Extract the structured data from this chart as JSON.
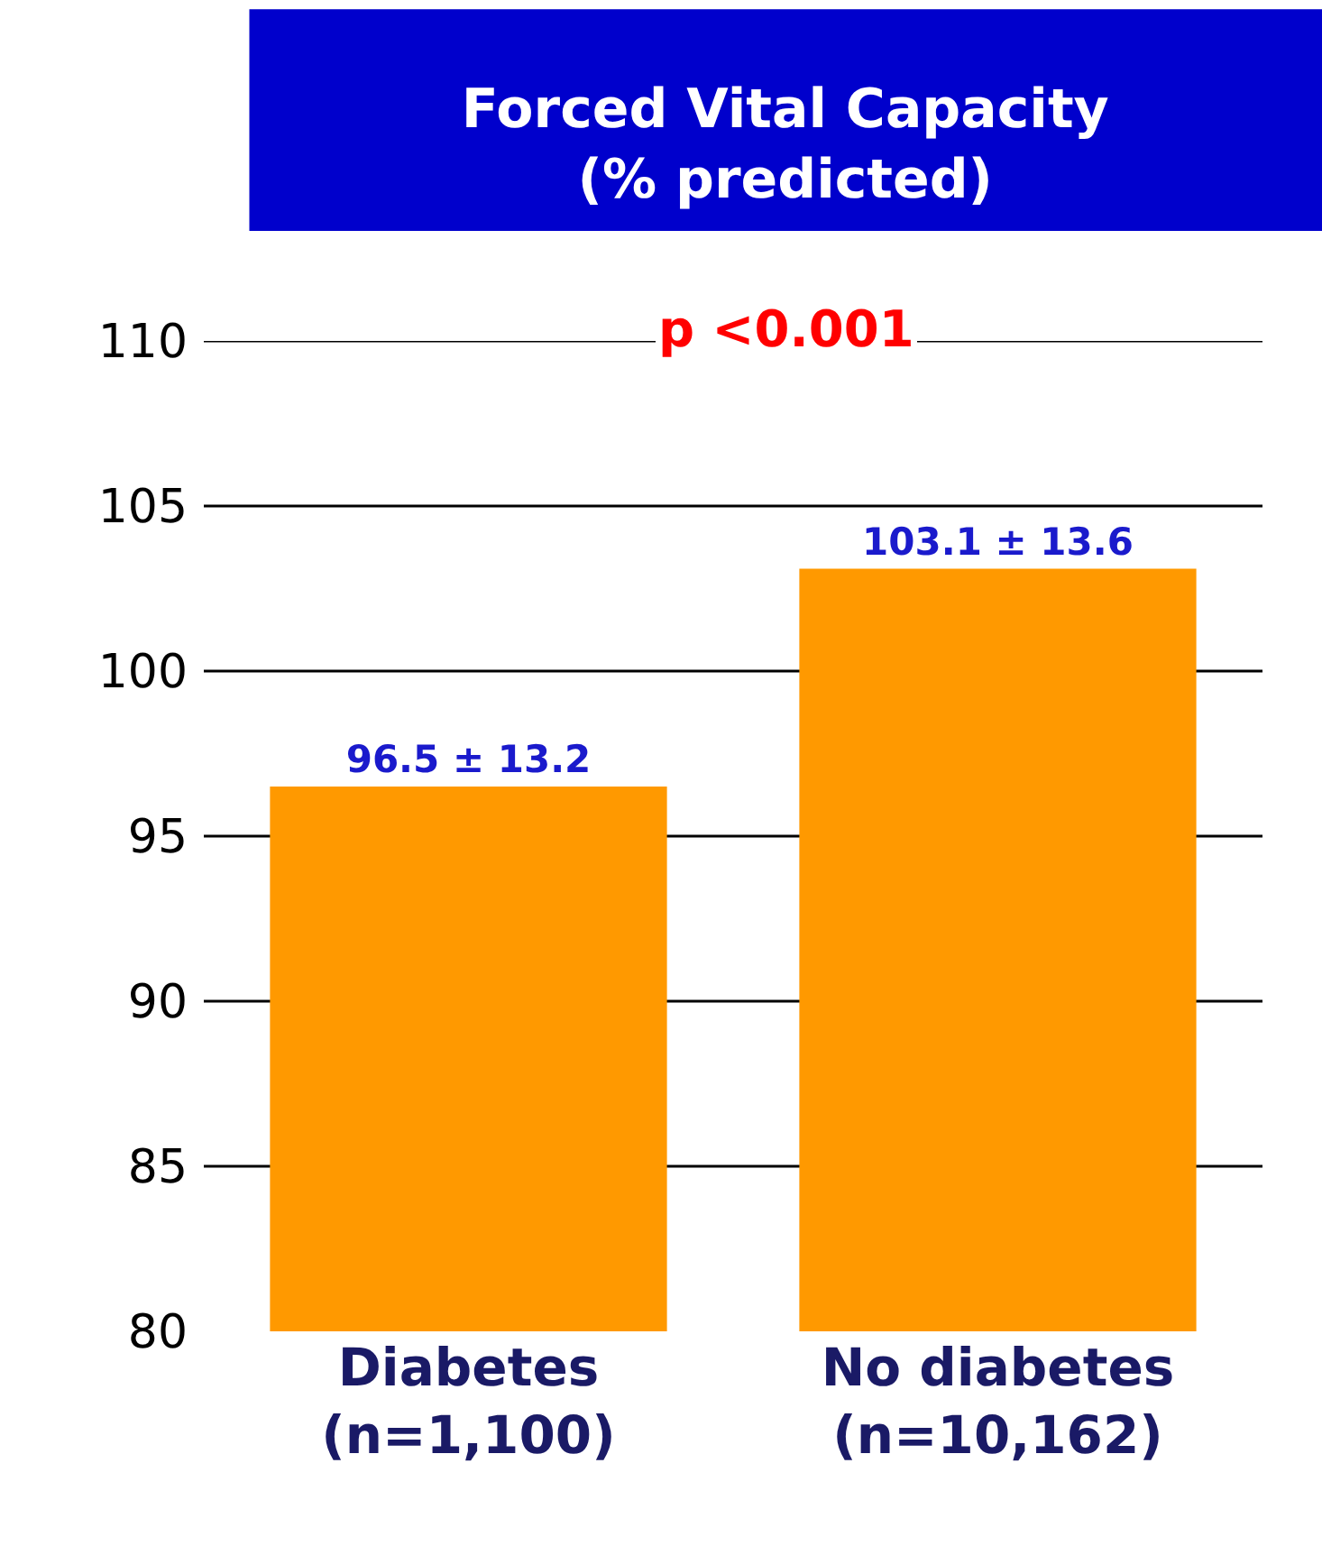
{
  "chart_data": {
    "type": "bar",
    "title": "Forced Vital Capacity\n(% predicted)",
    "categories": [
      "Diabetes\n(n=1,100)",
      "No diabetes\n(n=10,162)"
    ],
    "values": [
      96.5,
      103.1
    ],
    "value_labels": [
      "96.5 ± 13.2",
      "103.1 ± 13.6"
    ],
    "color": "#ff9900",
    "ylim": [
      80,
      110
    ],
    "yticks": [
      80,
      85,
      90,
      95,
      100,
      105,
      110
    ],
    "grid": "y",
    "annotations": [
      "p <0.001"
    ]
  }
}
